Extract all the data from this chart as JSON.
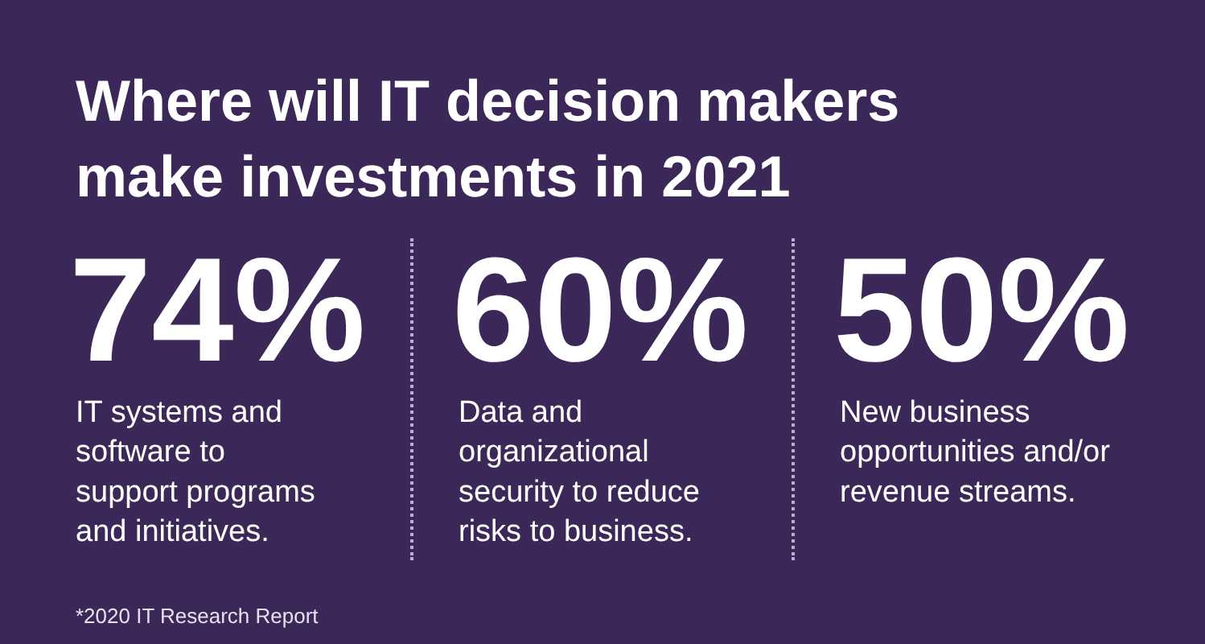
{
  "chart_data": {
    "type": "other",
    "title": "Where will IT decision makers make investments in 2021",
    "categories": [
      "IT systems and\nsoftware to\nsupport programs\nand initiatives.",
      "Data and\norganizational\nsecurity to reduce\nrisks to business.",
      "New business\nopportunities and/or\nrevenue streams."
    ],
    "values": [
      74,
      60,
      50
    ],
    "value_labels": [
      "74%",
      "60%",
      "50%"
    ],
    "annotations": [
      "*2020 IT Research Report"
    ]
  }
}
